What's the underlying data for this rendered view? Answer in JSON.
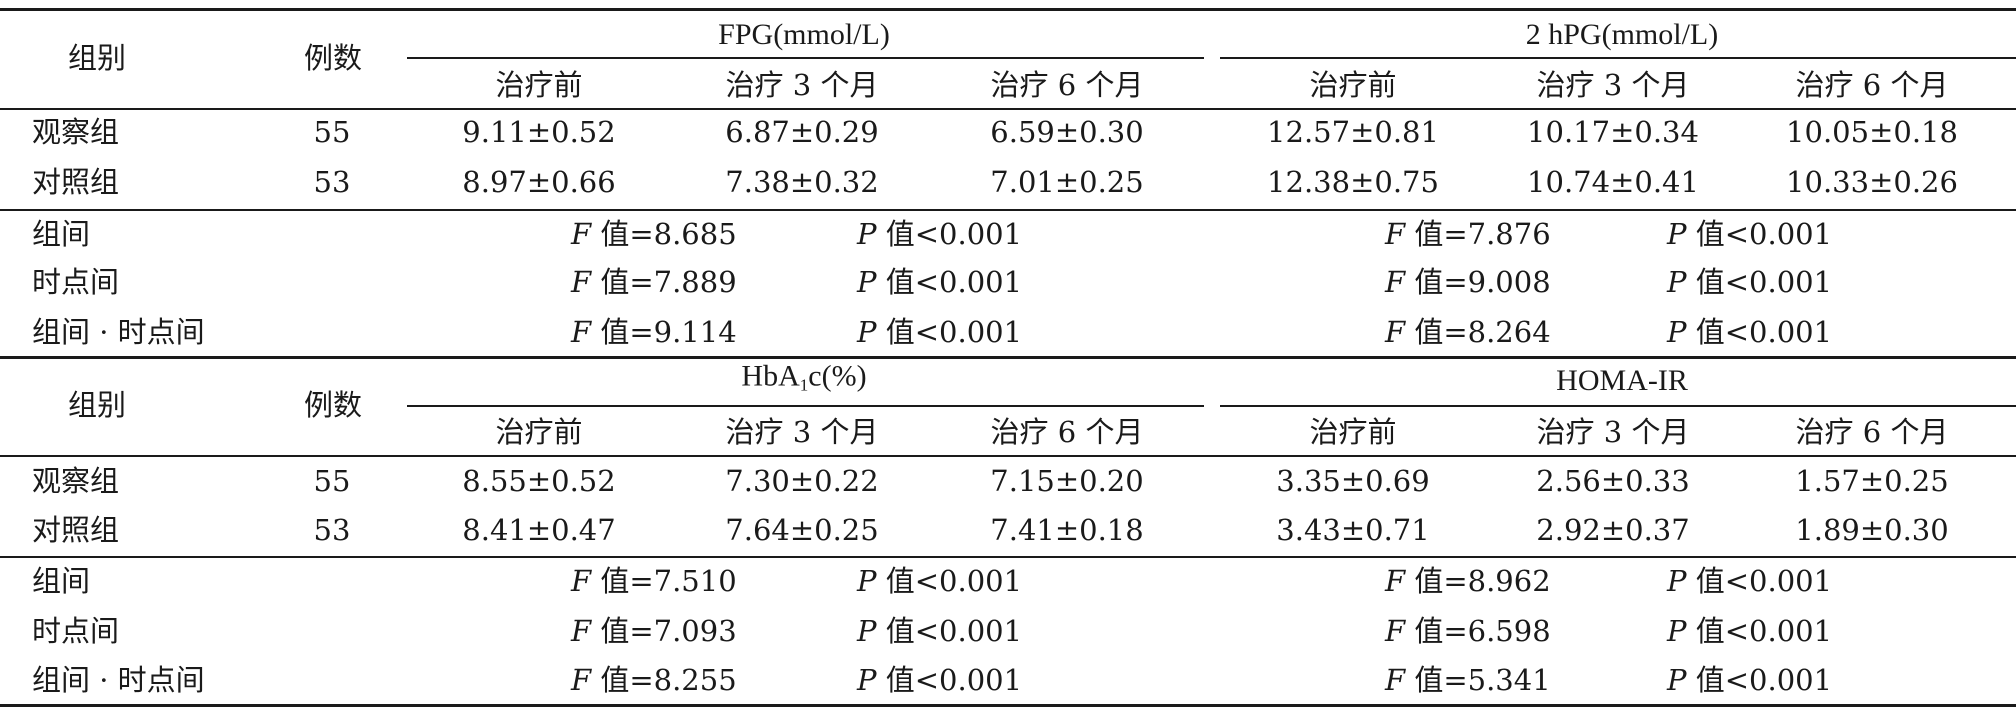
{
  "tables": [
    {
      "group_header": "组别",
      "count_header": "例数",
      "metric_left": "FPG(mmol/L)",
      "metric_right": "2 hPG(mmol/L)",
      "time_headers": [
        "治疗前",
        "治疗 3 个月",
        "治疗 6 个月",
        "治疗前",
        "治疗 3 个月",
        "治疗 6 个月"
      ],
      "rows": [
        {
          "group": "观察组",
          "n": "55",
          "values": [
            "9.11±0.52",
            "6.87±0.29",
            "6.59±0.30",
            "12.57±0.81",
            "10.17±0.34",
            "10.05±0.18"
          ]
        },
        {
          "group": "对照组",
          "n": "53",
          "values": [
            "8.97±0.66",
            "7.38±0.32",
            "7.01±0.25",
            "12.38±0.75",
            "10.74±0.41",
            "10.33±0.26"
          ]
        }
      ],
      "stats": [
        {
          "label": "组间",
          "f_left": "值=8.685",
          "p_left": "值<0.001",
          "f_right": "值=7.876",
          "p_right": "值<0.001"
        },
        {
          "label": "时点间",
          "f_left": "值=7.889",
          "p_left": "值<0.001",
          "f_right": "值=9.008",
          "p_right": "值<0.001"
        },
        {
          "label": "组间 · 时点间",
          "f_left": "值=9.114",
          "p_left": "值<0.001",
          "f_right": "值=8.264",
          "p_right": "值<0.001"
        }
      ]
    },
    {
      "group_header": "组别",
      "count_header": "例数",
      "metric_left_main": "HbA",
      "metric_left_sub": "1",
      "metric_left_rest": "c(%)",
      "metric_right": "HOMA-IR",
      "time_headers": [
        "治疗前",
        "治疗 3 个月",
        "治疗 6 个月",
        "治疗前",
        "治疗 3 个月",
        "治疗 6 个月"
      ],
      "rows": [
        {
          "group": "观察组",
          "n": "55",
          "values": [
            "8.55±0.52",
            "7.30±0.22",
            "7.15±0.20",
            "3.35±0.69",
            "2.56±0.33",
            "1.57±0.25"
          ]
        },
        {
          "group": "对照组",
          "n": "53",
          "values": [
            "8.41±0.47",
            "7.64±0.25",
            "7.41±0.18",
            "3.43±0.71",
            "2.92±0.37",
            "1.89±0.30"
          ]
        }
      ],
      "stats": [
        {
          "label": "组间",
          "f_left": "值=7.510",
          "p_left": "值<0.001",
          "f_right": "值=8.962",
          "p_right": "值<0.001"
        },
        {
          "label": "时点间",
          "f_left": "值=7.093",
          "p_left": "值<0.001",
          "f_right": "值=6.598",
          "p_right": "值<0.001"
        },
        {
          "label": "组间 · 时点间",
          "f_left": "值=8.255",
          "p_left": "值<0.001",
          "f_right": "值=5.341",
          "p_right": "值<0.001"
        }
      ]
    }
  ],
  "stat_symbols": {
    "f": "F",
    "p": "P"
  }
}
